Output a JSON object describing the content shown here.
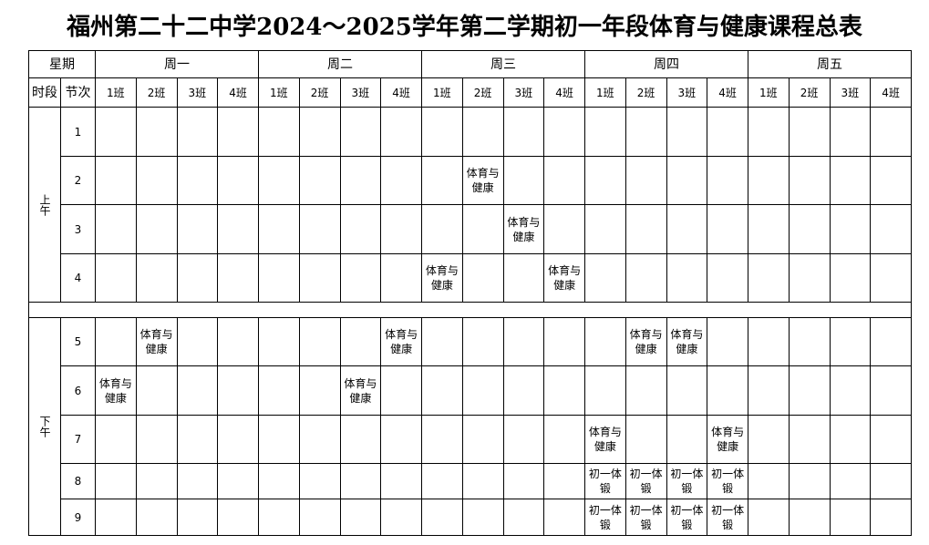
{
  "title": "福州第二十二中学2024～2025学年第二学期初一年段体育与健康课程总表",
  "header": {
    "day_label": "星期",
    "session_label": "时段",
    "period_label": "节次",
    "days": [
      "周一",
      "周二",
      "周三",
      "周四",
      "周五"
    ],
    "classes": [
      "1班",
      "2班",
      "3班",
      "4班"
    ]
  },
  "sessions": [
    {
      "label": "上午",
      "rows": [
        {
          "period": "1",
          "cells": [
            null,
            null,
            null,
            null,
            null,
            null,
            null,
            null,
            null,
            null,
            null,
            null,
            null,
            null,
            null,
            null,
            null,
            null,
            null,
            null
          ]
        },
        {
          "period": "2",
          "cells": [
            null,
            null,
            null,
            null,
            null,
            null,
            null,
            null,
            null,
            "体育与健康",
            null,
            null,
            null,
            null,
            null,
            null,
            null,
            null,
            null,
            null
          ]
        },
        {
          "period": "3",
          "cells": [
            null,
            null,
            null,
            null,
            null,
            null,
            null,
            null,
            null,
            null,
            "体育与健康",
            null,
            null,
            null,
            null,
            null,
            null,
            null,
            null,
            null
          ]
        },
        {
          "period": "4",
          "cells": [
            null,
            null,
            null,
            null,
            null,
            null,
            null,
            null,
            "体育与健康",
            null,
            null,
            "体育与健康",
            null,
            null,
            null,
            null,
            null,
            null,
            null,
            null
          ]
        }
      ]
    },
    {
      "label": "下午",
      "rows": [
        {
          "period": "5",
          "cells": [
            null,
            "体育与健康",
            null,
            null,
            null,
            null,
            null,
            "体育与健康",
            null,
            null,
            null,
            null,
            null,
            "体育与健康",
            "体育与健康",
            null,
            null,
            null,
            null,
            null
          ]
        },
        {
          "period": "6",
          "cells": [
            "体育与健康",
            null,
            null,
            null,
            null,
            null,
            "体育与健康",
            null,
            null,
            null,
            null,
            null,
            null,
            null,
            null,
            null,
            null,
            null,
            null,
            null
          ]
        },
        {
          "period": "7",
          "cells": [
            null,
            null,
            null,
            null,
            null,
            null,
            null,
            null,
            null,
            null,
            null,
            null,
            "体育与健康",
            null,
            null,
            "体育与健康",
            null,
            null,
            null,
            null
          ]
        },
        {
          "period": "8",
          "cells": [
            null,
            null,
            null,
            null,
            null,
            null,
            null,
            null,
            null,
            null,
            null,
            null,
            "初一体锻",
            "初一体锻",
            "初一体锻",
            "初一体锻",
            null,
            null,
            null,
            null
          ]
        },
        {
          "period": "9",
          "cells": [
            null,
            null,
            null,
            null,
            null,
            null,
            null,
            null,
            null,
            null,
            null,
            null,
            "初一体锻",
            "初一体锻",
            "初一体锻",
            "初一体锻",
            null,
            null,
            null,
            null
          ]
        }
      ]
    }
  ]
}
